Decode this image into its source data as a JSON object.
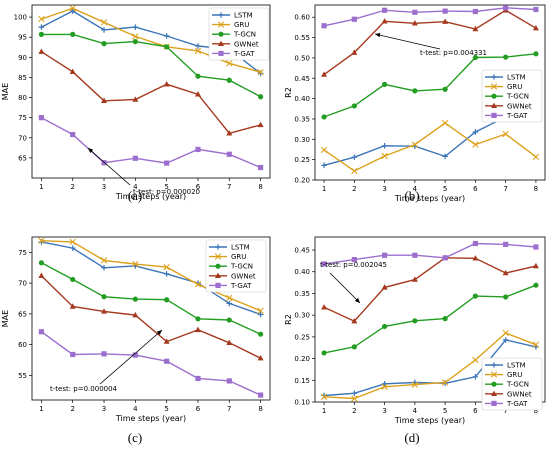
{
  "colors": {
    "LSTM": "#3b75b8",
    "GRU": "#dca11c",
    "T-GCN": "#229d22",
    "GWNet": "#a5381d",
    "T-GAT": "#9c6fcf"
  },
  "markers": {
    "LSTM": "plus",
    "GRU": "x",
    "T-GCN": "circle",
    "GWNet": "triangle",
    "T-GAT": "square"
  },
  "chart_data": [
    {
      "id": "a",
      "type": "line",
      "panel_label": "(a)",
      "xlabel": "Time steps (year)",
      "ylabel": "MAE",
      "x": [
        1,
        2,
        3,
        4,
        5,
        6,
        7,
        8
      ],
      "ylim": [
        60,
        103
      ],
      "yticks": [
        65,
        70,
        75,
        80,
        85,
        90,
        95,
        100
      ],
      "legend": "upper-right",
      "annotation": "t-test: p=0.000020",
      "series": [
        {
          "name": "LSTM",
          "values": [
            97.5,
            101.5,
            96.8,
            97.5,
            95.3,
            92.8,
            92.0,
            86.0
          ]
        },
        {
          "name": "GRU",
          "values": [
            99.5,
            102.2,
            98.7,
            95.2,
            92.6,
            91.6,
            88.5,
            86.3
          ]
        },
        {
          "name": "T-GCN",
          "values": [
            95.7,
            95.7,
            93.4,
            93.9,
            92.6,
            85.3,
            84.3,
            80.2
          ]
        },
        {
          "name": "GWNet",
          "values": [
            91.4,
            86.4,
            79.2,
            79.5,
            83.3,
            80.8,
            71.1,
            73.2
          ]
        },
        {
          "name": "T-GAT",
          "values": [
            75.0,
            70.8,
            63.8,
            64.9,
            63.7,
            67.1,
            65.9,
            62.6
          ]
        }
      ]
    },
    {
      "id": "b",
      "type": "line",
      "panel_label": "(b)",
      "xlabel": "Time steps (year)",
      "ylabel": "R2",
      "x": [
        1,
        2,
        3,
        4,
        5,
        6,
        7,
        8
      ],
      "ylim": [
        0.2,
        0.63
      ],
      "yticks": [
        0.2,
        0.25,
        0.3,
        0.35,
        0.4,
        0.45,
        0.5,
        0.55,
        0.6
      ],
      "legend": "center-right",
      "annotation": "t-test: p=0.004331",
      "series": [
        {
          "name": "LSTM",
          "values": [
            0.236,
            0.256,
            0.284,
            0.283,
            0.258,
            0.318,
            0.355,
            0.36
          ]
        },
        {
          "name": "GRU",
          "values": [
            0.274,
            0.222,
            0.259,
            0.287,
            0.34,
            0.287,
            0.313,
            0.257
          ]
        },
        {
          "name": "T-GCN",
          "values": [
            0.355,
            0.382,
            0.435,
            0.419,
            0.423,
            0.501,
            0.502,
            0.51
          ]
        },
        {
          "name": "GWNet",
          "values": [
            0.459,
            0.513,
            0.59,
            0.585,
            0.589,
            0.571,
            0.617,
            0.573
          ]
        },
        {
          "name": "T-GAT",
          "values": [
            0.579,
            0.595,
            0.617,
            0.612,
            0.615,
            0.614,
            0.623,
            0.619
          ]
        }
      ]
    },
    {
      "id": "c",
      "type": "line",
      "panel_label": "(c)",
      "xlabel": "Time steps (year)",
      "ylabel": "MAE",
      "x": [
        1,
        2,
        3,
        4,
        5,
        6,
        7,
        8
      ],
      "ylim": [
        51,
        77.5
      ],
      "yticks": [
        55,
        60,
        65,
        70,
        75
      ],
      "legend": "upper-right",
      "annotation": "t-test: p=0.000004",
      "series": [
        {
          "name": "LSTM",
          "values": [
            76.7,
            75.7,
            72.5,
            72.8,
            71.5,
            70.0,
            66.7,
            64.9
          ]
        },
        {
          "name": "GRU",
          "values": [
            76.9,
            76.7,
            73.7,
            73.1,
            72.6,
            69.8,
            67.6,
            65.5
          ]
        },
        {
          "name": "T-GCN",
          "values": [
            73.3,
            70.6,
            67.8,
            67.4,
            67.3,
            64.2,
            64.0,
            61.7
          ]
        },
        {
          "name": "GWNet",
          "values": [
            71.2,
            66.2,
            65.4,
            64.8,
            60.5,
            62.4,
            60.3,
            57.8
          ]
        },
        {
          "name": "T-GAT",
          "values": [
            62.1,
            58.4,
            58.5,
            58.3,
            57.3,
            54.5,
            54.1,
            51.8
          ]
        }
      ]
    },
    {
      "id": "d",
      "type": "line",
      "panel_label": "(d)",
      "xlabel": "Time steps (year)",
      "ylabel": "R2",
      "x": [
        1,
        2,
        3,
        4,
        5,
        6,
        7,
        8
      ],
      "ylim": [
        0.1,
        0.48
      ],
      "yticks": [
        0.1,
        0.15,
        0.2,
        0.25,
        0.3,
        0.35,
        0.4,
        0.45
      ],
      "legend": "lower-right",
      "annotation": "t-test: p=0.002045",
      "series": [
        {
          "name": "LSTM",
          "values": [
            0.115,
            0.12,
            0.142,
            0.145,
            0.143,
            0.158,
            0.243,
            0.227
          ]
        },
        {
          "name": "GRU",
          "values": [
            0.112,
            0.108,
            0.135,
            0.14,
            0.145,
            0.197,
            0.259,
            0.232
          ]
        },
        {
          "name": "T-GCN",
          "values": [
            0.213,
            0.227,
            0.274,
            0.287,
            0.292,
            0.344,
            0.342,
            0.369
          ]
        },
        {
          "name": "GWNet",
          "values": [
            0.318,
            0.286,
            0.364,
            0.382,
            0.432,
            0.431,
            0.397,
            0.413
          ]
        },
        {
          "name": "T-GAT",
          "values": [
            0.418,
            0.428,
            0.438,
            0.438,
            0.432,
            0.465,
            0.463,
            0.457
          ]
        }
      ]
    }
  ]
}
